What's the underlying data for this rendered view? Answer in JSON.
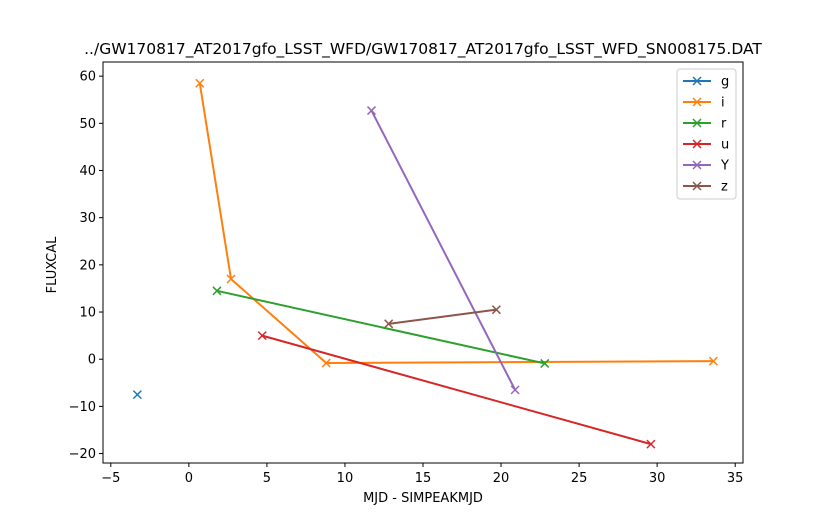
{
  "chart_data": {
    "type": "line",
    "title": "../GW170817_AT2017gfo_LSST_WFD/GW170817_AT2017gfo_LSST_WFD_SN008175.DAT",
    "xlabel": "MJD - SIMPEAKMJD",
    "ylabel": "FLUXCAL",
    "xlim": [
      -5.5,
      35.5
    ],
    "ylim": [
      -22,
      63
    ],
    "xticks": [
      -5,
      0,
      5,
      10,
      15,
      20,
      25,
      30,
      35
    ],
    "yticks": [
      -20,
      -10,
      0,
      10,
      20,
      30,
      40,
      50,
      60
    ],
    "grid": false,
    "legend_position": "top-right",
    "marker": "x",
    "series": [
      {
        "name": "g",
        "color": "#1f77b4",
        "x": [
          -3.3
        ],
        "y": [
          -7.5
        ]
      },
      {
        "name": "i",
        "color": "#ff7f0e",
        "x": [
          0.7,
          2.7,
          8.8,
          33.6
        ],
        "y": [
          58.5,
          17.0,
          -0.8,
          -0.4
        ]
      },
      {
        "name": "r",
        "color": "#2ca02c",
        "x": [
          1.8,
          22.8
        ],
        "y": [
          14.5,
          -0.9
        ]
      },
      {
        "name": "u",
        "color": "#d62728",
        "x": [
          4.7,
          29.6
        ],
        "y": [
          5.0,
          -18.0
        ]
      },
      {
        "name": "Y",
        "color": "#9467bd",
        "x": [
          11.7,
          20.9
        ],
        "y": [
          52.7,
          -6.5
        ]
      },
      {
        "name": "z",
        "color": "#8c564b",
        "x": [
          12.8,
          19.7
        ],
        "y": [
          7.5,
          10.5
        ]
      }
    ]
  }
}
